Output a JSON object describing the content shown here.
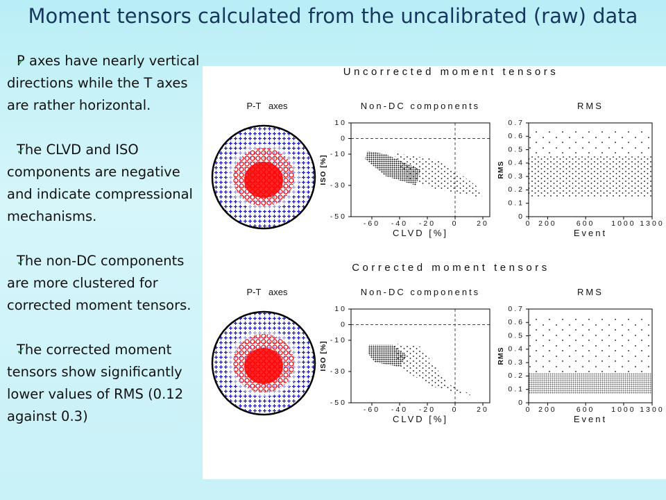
{
  "title": "Moment tensors calculated from the uncalibrated (raw) data",
  "bullets": [
    "P axes have nearly vertical directions while the T axes are rather horizontal.",
    "The CLVD and ISO components are negative and indicate compressional mechanisms.",
    "The non-DC components are more clustered for corrected moment tensors.",
    "The corrected moment tensors show significantly lower values of RMS (0.12 against 0.3)"
  ],
  "figure": {
    "panels": [
      {
        "heading": "Uncorrected moment tensors",
        "pt_title": "P-T   axes",
        "nondc": {
          "type": "scatter",
          "title": "Non-DC components",
          "xlabel": "CLVD [%]",
          "ylabel": "ISO [%]",
          "xlim": [
            -75,
            25
          ],
          "xticks": [
            -60,
            -40,
            -20,
            0,
            20
          ],
          "ylim": [
            -50,
            10
          ],
          "yticks": [
            10,
            0,
            -10,
            -30,
            -50
          ]
        },
        "rms": {
          "type": "scatter",
          "title": "RMS",
          "xlabel": "Event",
          "ylabel": "RMS",
          "xlim": [
            0,
            1300
          ],
          "xticks": [
            0,
            200,
            600,
            1000,
            1300
          ],
          "ylim": [
            0,
            0.7
          ],
          "yticks": [
            0,
            0.1,
            0.2,
            0.3,
            0.4,
            0.5,
            0.6,
            0.7
          ]
        }
      },
      {
        "heading": "Corrected moment tensors",
        "pt_title": "P-T   axes",
        "nondc": {
          "type": "scatter",
          "title": "Non-DC components",
          "xlabel": "CLVD [%]",
          "ylabel": "ISO [%]",
          "xlim": [
            -75,
            25
          ],
          "xticks": [
            -60,
            -40,
            -20,
            0,
            20
          ],
          "ylim": [
            -50,
            10
          ],
          "yticks": [
            10,
            0,
            -10,
            -30,
            -50
          ]
        },
        "rms": {
          "type": "scatter",
          "title": "RMS",
          "xlabel": "Event",
          "ylabel": "RMS",
          "xlim": [
            0,
            1300
          ],
          "xticks": [
            0,
            200,
            600,
            1000,
            1300
          ],
          "ylim": [
            0,
            0.7
          ],
          "yticks": [
            0,
            0.1,
            0.2,
            0.3,
            0.4,
            0.5,
            0.6,
            0.7
          ]
        }
      }
    ]
  }
}
